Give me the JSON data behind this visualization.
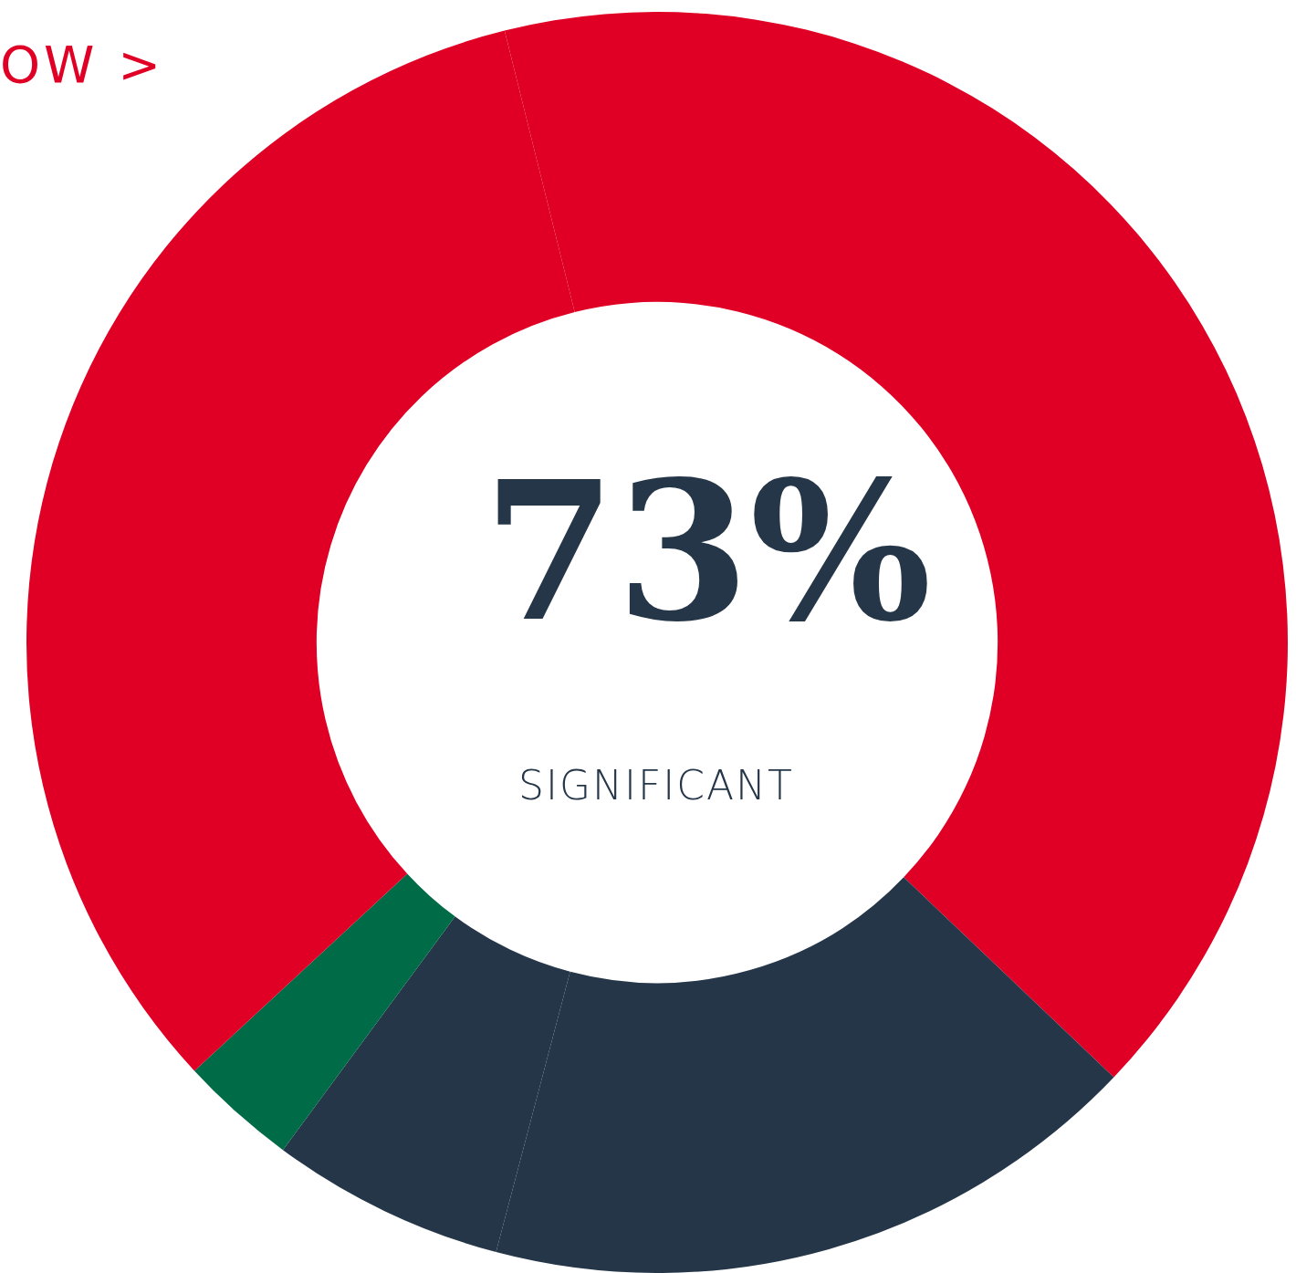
{
  "chart_data": {
    "type": "donut",
    "categories": [
      null,
      null,
      null,
      null,
      null
    ],
    "values": [
      41,
      17,
      6,
      3,
      33
    ],
    "colors": [
      "#e00025",
      "#253648",
      "#253648",
      "#006b47",
      "#e00025"
    ],
    "annotations": [
      "73%",
      "SIGNIFICANT",
      "OW >"
    ],
    "legend": false
  }
}
